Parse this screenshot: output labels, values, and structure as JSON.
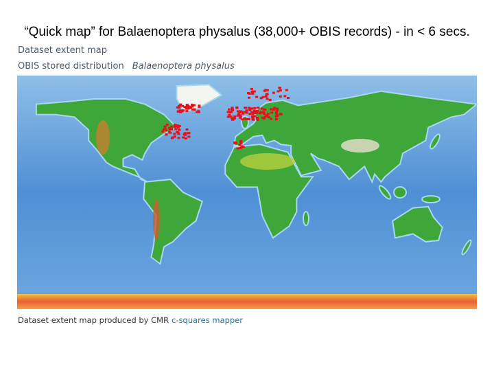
{
  "title": "“Quick map” for Balaenoptera physalus (38,000+ OBIS records) - in < 6 secs.",
  "map": {
    "header": "Dataset extent map",
    "subheader": {
      "label": "OBIS stored distribution",
      "species": "Balaenoptera physalus"
    }
  },
  "footer": {
    "text": "Dataset extent map produced by CMR",
    "link": "c-squares mapper"
  }
}
